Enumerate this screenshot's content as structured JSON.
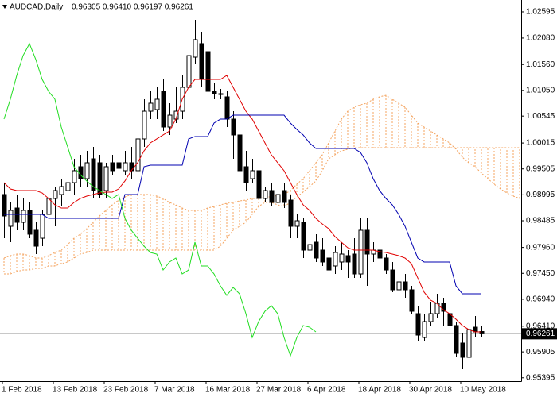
{
  "chart_data": {
    "type": "candlestick",
    "title": "AUDCAD,Daily",
    "subtitle": "0.96305 0.96410 0.96197 0.96261",
    "categories": [
      "1 Feb 2018",
      null,
      null,
      null,
      null,
      null,
      null,
      null,
      "13 Feb 2018",
      null,
      null,
      null,
      null,
      null,
      null,
      null,
      "23 Feb 2018",
      null,
      null,
      null,
      null,
      null,
      null,
      null,
      "7 Mar 2018",
      null,
      null,
      null,
      null,
      null,
      null,
      null,
      "16 Mar 2018",
      null,
      null,
      null,
      null,
      null,
      null,
      null,
      "27 Mar 2018",
      null,
      null,
      null,
      null,
      null,
      null,
      null,
      "6 Apr 2018",
      null,
      null,
      null,
      null,
      null,
      null,
      null,
      "18 Apr 2018",
      null,
      null,
      null,
      null,
      null,
      null,
      null,
      "30 Apr 2018",
      null,
      null,
      null,
      null,
      null,
      null,
      null,
      "10 May 2018",
      null,
      null,
      null,
      null,
      null,
      null,
      null,
      null,
      null
    ],
    "open": [
      0.99001,
      0.98376,
      0.98735,
      0.98454,
      0.98688,
      0.98298,
      0.98141,
      0.9861,
      0.98923,
      0.99001,
      0.99079,
      0.99235,
      0.99548,
      0.99313,
      0.99704,
      0.99626,
      0.99079,
      0.99626,
      0.99626,
      0.9947,
      0.99626,
      0.9947,
      1.00095,
      1.00641,
      1.00673,
      1.01032,
      1.00329,
      1.00485,
      1.00641,
      1.0111,
      1.01704,
      1.0197,
      1.01813,
      1.01032,
      1.00985,
      1.00923,
      1.00485,
      1.00173,
      0.99548,
      0.99313,
      0.9947,
      0.98923,
      0.99079,
      0.98845,
      0.99079,
      0.98891,
      0.98376,
      0.98454,
      0.97907,
      0.98063,
      0.97907,
      0.97751,
      0.97595,
      0.97673,
      0.97798,
      0.97829,
      0.97438,
      0.98298,
      0.97829,
      0.97907,
      0.97751,
      0.97516,
      0.97126,
      0.97282,
      0.97126,
      0.96657,
      0.96188,
      0.96501,
      0.96657,
      0.9686,
      0.96657,
      0.96423,
      0.96079,
      0.95798,
      0.96391,
      0.96305,
      null,
      null,
      null,
      null,
      null,
      null
    ],
    "high": [
      0.99235,
      0.98845,
      0.99001,
      0.98923,
      0.98845,
      0.98454,
      0.98688,
      0.99079,
      0.99157,
      0.99313,
      0.99313,
      0.99704,
      0.99782,
      0.9986,
      0.99938,
      0.99782,
      0.99626,
      0.99782,
      0.99782,
      0.9986,
      0.99938,
      1.00251,
      1.00876,
      1.01032,
      1.0111,
      1.01266,
      1.00798,
      1.0111,
      1.01345,
      1.02048,
      1.02438,
      1.02204,
      1.01891,
      1.01188,
      1.01079,
      1.01032,
      1.00641,
      1.00251,
      0.9986,
      0.99704,
      0.99626,
      0.99157,
      0.99235,
      0.99235,
      0.99235,
      0.99001,
      0.9861,
      0.98532,
      0.98141,
      0.9822,
      0.98141,
      0.97985,
      0.97985,
      0.98063,
      0.97907,
      0.98141,
      0.98532,
      0.98532,
      0.98063,
      0.98063,
      0.97829,
      0.97673,
      0.9736,
      0.97438,
      0.97204,
      0.96813,
      0.96657,
      0.96891,
      0.97048,
      0.9697,
      0.96813,
      0.96501,
      0.96266,
      0.96423,
      0.9661,
      0.9641,
      null,
      null,
      null,
      null,
      null,
      null
    ],
    "low": [
      0.98141,
      0.98063,
      0.98298,
      0.98298,
      0.98141,
      0.97829,
      0.97985,
      0.9822,
      0.98376,
      0.98766,
      0.98766,
      0.99001,
      0.99157,
      0.99157,
      0.98923,
      0.98923,
      0.98923,
      0.99391,
      0.99391,
      0.99391,
      0.99313,
      0.99313,
      0.99938,
      1.00485,
      1.00485,
      1.00251,
      1.00173,
      1.00407,
      1.00485,
      1.00954,
      1.01579,
      1.0111,
      1.00954,
      1.00876,
      1.00876,
      1.00329,
      0.99704,
      0.99391,
      0.99079,
      0.99235,
      0.98845,
      0.98845,
      0.98766,
      0.98735,
      0.98735,
      0.98141,
      0.98141,
      0.97751,
      0.97751,
      0.97673,
      0.97595,
      0.97438,
      0.97438,
      0.97516,
      0.9736,
      0.9736,
      0.9736,
      0.97204,
      0.97673,
      0.97673,
      0.97438,
      0.97079,
      0.97048,
      0.9697,
      0.96657,
      0.9611,
      0.9611,
      0.96423,
      0.96579,
      0.96423,
      0.96188,
      0.95798,
      0.95563,
      0.9572,
      0.96188,
      0.96197,
      null,
      null,
      null,
      null,
      null,
      null
    ],
    "close": [
      0.98579,
      0.98688,
      0.98454,
      0.98688,
      0.9822,
      0.97985,
      0.9861,
      0.98923,
      0.99079,
      0.99157,
      0.99235,
      0.9947,
      0.99313,
      0.99626,
      0.99079,
      0.99001,
      0.99548,
      0.9947,
      0.99516,
      0.99626,
      0.9947,
      1.00095,
      1.00641,
      1.00798,
      1.00876,
      1.00329,
      1.00563,
      1.00641,
      1.0111,
      1.01735,
      1.02048,
      1.01266,
      1.01032,
      1.00985,
      1.00985,
      1.00485,
      1.00173,
      0.9947,
      0.99235,
      0.9947,
      0.98923,
      0.99079,
      0.98845,
      0.99001,
      0.98845,
      0.98376,
      0.98485,
      0.97907,
      0.98016,
      0.97751,
      0.97673,
      0.97516,
      0.9786,
      0.97829,
      0.97673,
      0.97438,
      0.98298,
      0.97829,
      0.97907,
      0.97751,
      0.97516,
      0.97126,
      0.97282,
      0.97126,
      0.96704,
      0.96235,
      0.96501,
      0.96657,
      0.9686,
      0.96704,
      0.96423,
      0.95876,
      0.95798,
      0.96345,
      0.96298,
      0.96261,
      null,
      null,
      null,
      null,
      null,
      null
    ],
    "up_color": "#ffffff",
    "down_color": "#000000",
    "candle_outline": "#000000",
    "lines": [
      {
        "color": "#e00000",
        "values": [
          0.99235,
          0.9911,
          0.99079,
          0.99079,
          0.99079,
          0.99079,
          0.99032,
          0.98923,
          0.98798,
          0.98735,
          0.98735,
          0.98845,
          0.98923,
          0.9897,
          0.99001,
          0.99032,
          0.99048,
          0.99048,
          0.9911,
          0.99267,
          0.9947,
          0.99626,
          0.9986,
          1.00017,
          1.00095,
          1.00173,
          1.00251,
          1.00485,
          1.00876,
          1.0111,
          1.01266,
          1.01266,
          1.01266,
          1.01266,
          1.01266,
          1.01345,
          1.0111,
          1.00876,
          1.00641,
          1.00485,
          1.00251,
          1.00017,
          0.99782,
          0.99626,
          0.9947,
          0.99235,
          0.99001,
          0.98798,
          0.98688,
          0.98532,
          0.98423,
          0.98329,
          0.98173,
          0.98063,
          0.97954,
          0.97907,
          0.97907,
          0.97907,
          0.97907,
          0.97876,
          0.9786,
          0.97829,
          0.97798,
          0.97751,
          0.97641,
          0.9736,
          0.97079,
          0.96923,
          0.9686,
          0.96735,
          0.96657,
          0.96548,
          0.96423,
          0.96345,
          0.96298,
          0.96298,
          null,
          null,
          null,
          null,
          null,
          null
        ]
      },
      {
        "color": "#0000b0",
        "values": [
          0.9861,
          0.9861,
          0.9861,
          0.9861,
          0.9861,
          0.9861,
          0.9861,
          0.98532,
          0.98532,
          0.98532,
          0.98532,
          0.98532,
          0.98532,
          0.98532,
          0.98532,
          0.98532,
          0.98532,
          0.98532,
          0.98532,
          0.99001,
          0.99001,
          0.99001,
          0.99548,
          0.99579,
          0.99579,
          0.99579,
          0.99579,
          0.99579,
          0.99579,
          1.00095,
          1.00142,
          1.00142,
          1.00142,
          1.00407,
          1.00485,
          1.00485,
          1.00563,
          1.00563,
          1.00563,
          1.00563,
          1.00563,
          1.00563,
          1.00563,
          1.00563,
          1.00563,
          1.00407,
          1.00282,
          1.00173,
          1.00017,
          0.99907,
          0.99907,
          0.99907,
          0.99907,
          0.99907,
          0.99907,
          0.99907,
          0.99829,
          0.99626,
          0.99313,
          0.99079,
          0.98923,
          0.98798,
          0.9861,
          0.98376,
          0.98063,
          0.97751,
          0.97673,
          0.97673,
          0.97673,
          0.97673,
          0.97673,
          0.97204,
          0.97048,
          0.97048,
          0.97048,
          0.97048,
          null,
          null,
          null,
          null,
          null,
          null
        ]
      },
      {
        "color": "#22dd22",
        "values": [
          1.00485,
          1.00876,
          1.01345,
          1.01735,
          1.0197,
          1.01657,
          1.01266,
          1.01032,
          1.00876,
          1.00329,
          0.99938,
          0.99548,
          0.99391,
          0.99267,
          0.99157,
          0.99079,
          0.99001,
          0.98923,
          0.99001,
          0.98532,
          0.98298,
          0.98141,
          0.97985,
          0.9786,
          0.97829,
          0.97516,
          0.97673,
          0.97751,
          0.97438,
          0.97516,
          0.98063,
          0.97595,
          0.97595,
          0.97438,
          0.97204,
          0.97017,
          0.97173,
          0.97048,
          0.96657,
          0.96188,
          0.96501,
          0.96704,
          0.96813,
          0.96657,
          0.96188,
          0.95829,
          0.96188,
          0.96423,
          0.96391,
          0.96298,
          null,
          null,
          null,
          null,
          null,
          null,
          null,
          null,
          null,
          null,
          null,
          null,
          null,
          null,
          null,
          null,
          null,
          null,
          null,
          null,
          null,
          null,
          null,
          null,
          null,
          null,
          null,
          null,
          null,
          null,
          null,
          null
        ]
      }
    ],
    "cloud": {
      "color": "#f4a460",
      "span_a": [
        0.97751,
        0.97798,
        0.97829,
        0.97829,
        0.97798,
        0.97751,
        0.97751,
        0.97798,
        0.9786,
        0.97907,
        0.98016,
        0.98141,
        0.9822,
        0.98329,
        0.98454,
        0.98579,
        0.98688,
        0.98798,
        0.98891,
        0.98954,
        0.99001,
        0.99001,
        0.99001,
        0.99001,
        0.9897,
        0.98923,
        0.98845,
        0.98798,
        0.98735,
        0.98688,
        0.98688,
        0.98688,
        0.98735,
        0.98766,
        0.98798,
        0.98829,
        0.98845,
        0.98876,
        0.98891,
        0.98923,
        0.98923,
        0.98954,
        0.98954,
        0.98985,
        0.99001,
        0.99079,
        0.99204,
        0.99313,
        0.9947,
        0.99626,
        0.99782,
        1.00017,
        1.00251,
        1.00485,
        1.00641,
        1.0072,
        1.00767,
        1.00798,
        1.00876,
        1.00923,
        1.00954,
        1.00876,
        1.00798,
        1.0072,
        1.00563,
        1.00407,
        1.00329,
        1.00251,
        1.00173,
        1.00095,
        1.00017,
        0.99892,
        0.99735,
        0.99626,
        0.99548,
        0.99423,
        0.99313,
        0.99204,
        0.9911,
        0.99032,
        0.9897,
        0.98923
      ],
      "span_b": [
        0.97438,
        0.97438,
        0.97485,
        0.97516,
        0.97516,
        0.97548,
        0.97548,
        0.97595,
        0.97595,
        0.97641,
        0.97673,
        0.97751,
        0.97829,
        0.9786,
        0.97907,
        0.97907,
        0.97907,
        0.97907,
        0.97907,
        0.97907,
        0.97907,
        0.97907,
        0.97907,
        0.97907,
        0.97907,
        0.97907,
        0.97907,
        0.97907,
        0.97907,
        0.97907,
        0.97907,
        0.97907,
        0.97907,
        0.97907,
        0.97985,
        0.98141,
        0.98298,
        0.98376,
        0.98454,
        0.9861,
        0.98766,
        0.98845,
        0.98845,
        0.98798,
        0.98766,
        0.98845,
        0.98954,
        0.99048,
        0.99157,
        0.99267,
        0.9947,
        0.99704,
        0.99782,
        0.9986,
        0.99892,
        0.99923,
        0.99923,
        0.99923,
        0.99923,
        0.99923,
        0.99923,
        0.99923,
        0.99923,
        0.99923,
        0.99923,
        0.99923,
        0.99923,
        0.99923,
        0.99923,
        0.99923,
        0.99923,
        0.99923,
        0.99923,
        0.99923,
        0.99923,
        0.99923,
        0.99923,
        0.99923,
        0.99923,
        0.99923,
        0.99923,
        0.99923
      ]
    },
    "last_price": 0.96261,
    "ylim": [
      0.95329,
      1.02829
    ],
    "yticks": [
      1.02595,
      {
        "value": 1.0208,
        "label": "1.02080"
      },
      {
        "value": 1.0156,
        "label": "1.01560"
      },
      {
        "value": 1.0105,
        "label": "1.01050"
      },
      1.00545,
      1.00015,
      0.99505,
      0.98995,
      0.98485,
      {
        "value": 0.9796,
        "label": "0.97960"
      },
      {
        "value": 0.9745,
        "label": "0.97450"
      },
      {
        "value": 0.9694,
        "label": "0.96940"
      },
      {
        "value": 0.9641,
        "label": "0.96410"
      },
      0.95905,
      0.95395
    ]
  }
}
